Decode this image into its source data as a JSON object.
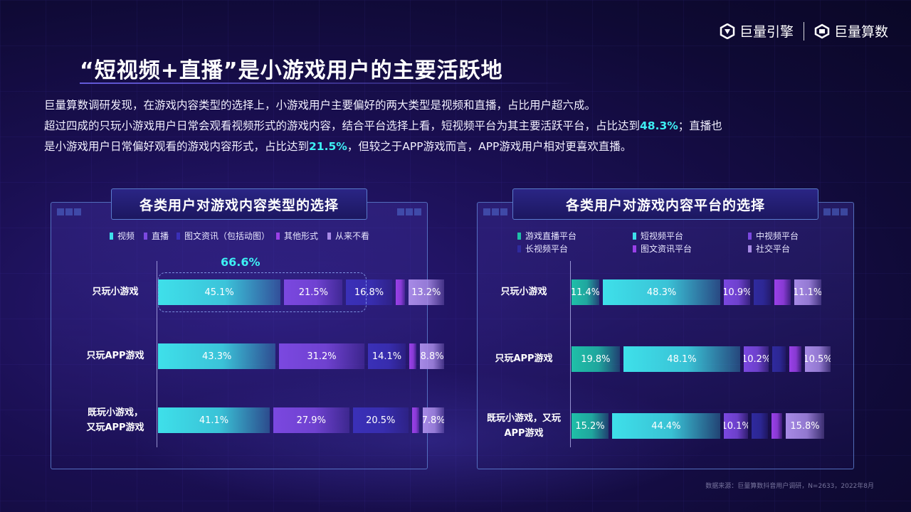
{
  "brand": {
    "logo1": "巨量引擎",
    "logo2": "巨量算数"
  },
  "title": "“短视频+直播”是小游戏用户的主要活跃地",
  "desc": {
    "line1": "巨量算数调研发现，在游戏内容类型的选择上，小游戏用户主要偏好的两大类型是视频和直播，占比用户超六成。",
    "line2_a": "超过四成的只玩小游戏用户日常会观看视频形式的游戏内容，结合平台选择上看，短视频平台为其主要活跃平台，占比达到",
    "line2_hl": "48.3%",
    "line2_b": "；直播也",
    "line3_a": "是小游戏用户日常偏好观看的游戏内容形式，占比达到",
    "line3_hl": "21.5%",
    "line3_b": "，但较之于APP游戏而言，APP游戏用户相对更喜欢直播。"
  },
  "source": "数据来源：巨量算数抖音用户调研，N=2633，2022年8月",
  "chart_data": [
    {
      "type": "bar",
      "stacked": true,
      "orientation": "horizontal",
      "title": "各类用户对游戏内容类型的选择",
      "categories": [
        "只玩小游戏",
        "只玩APP游戏",
        "既玩小游戏，又玩APP游戏"
      ],
      "series": [
        {
          "name": "视频",
          "values": [
            45.1,
            43.3,
            41.1
          ],
          "color": "#3ee0ea"
        },
        {
          "name": "直播",
          "values": [
            21.5,
            31.2,
            27.9
          ],
          "color": "#7b48e0"
        },
        {
          "name": "图文资讯（包括动图）",
          "values": [
            16.8,
            14.1,
            20.5
          ],
          "color": "#3a30b8"
        },
        {
          "name": "其他形式",
          "values": [
            3.4,
            2.6,
            2.7
          ],
          "color": "#9a40e8"
        },
        {
          "name": "从来不看",
          "values": [
            13.2,
            8.8,
            7.8
          ],
          "color": "#a78ae6"
        }
      ],
      "annotation": "66.6%",
      "labels": [
        [
          "45.1%",
          "21.5%",
          "16.8%",
          "",
          "13.2%"
        ],
        [
          "43.3%",
          "31.2%",
          "14.1%",
          "",
          "8.8%"
        ],
        [
          "41.1%",
          "27.9%",
          "20.5%",
          "",
          "7.8%"
        ]
      ]
    },
    {
      "type": "bar",
      "stacked": true,
      "orientation": "horizontal",
      "title": "各类用户对游戏内容平台的选择",
      "categories": [
        "只玩小游戏",
        "只玩APP游戏",
        "既玩小游戏，又玩APP游戏"
      ],
      "series": [
        {
          "name": "游戏直播平台",
          "values": [
            11.4,
            19.8,
            15.2
          ],
          "color": "#1fbfa8"
        },
        {
          "name": "短视频平台",
          "values": [
            48.3,
            48.1,
            44.4
          ],
          "color": "#3ee0ea"
        },
        {
          "name": "中视频平台",
          "values": [
            10.9,
            10.2,
            10.1
          ],
          "color": "#7b48e0"
        },
        {
          "name": "长视频平台",
          "values": [
            7.0,
            5.5,
            6.5
          ],
          "color": "#2f2a9e"
        },
        {
          "name": "图文资讯平台",
          "values": [
            6.5,
            5.0,
            4.5
          ],
          "color": "#9a40e8"
        },
        {
          "name": "社交平台",
          "values": [
            11.1,
            10.5,
            15.8
          ],
          "color": "#a78ae6"
        }
      ],
      "labels": [
        [
          "11.4%",
          "48.3%",
          "10.9%",
          "",
          "",
          "11.1%"
        ],
        [
          "19.8%",
          "48.1%",
          "10.2%",
          "",
          "",
          "10.5%"
        ],
        [
          "15.2%",
          "44.4%",
          "10.1%",
          "",
          "",
          "15.8%"
        ]
      ]
    }
  ]
}
